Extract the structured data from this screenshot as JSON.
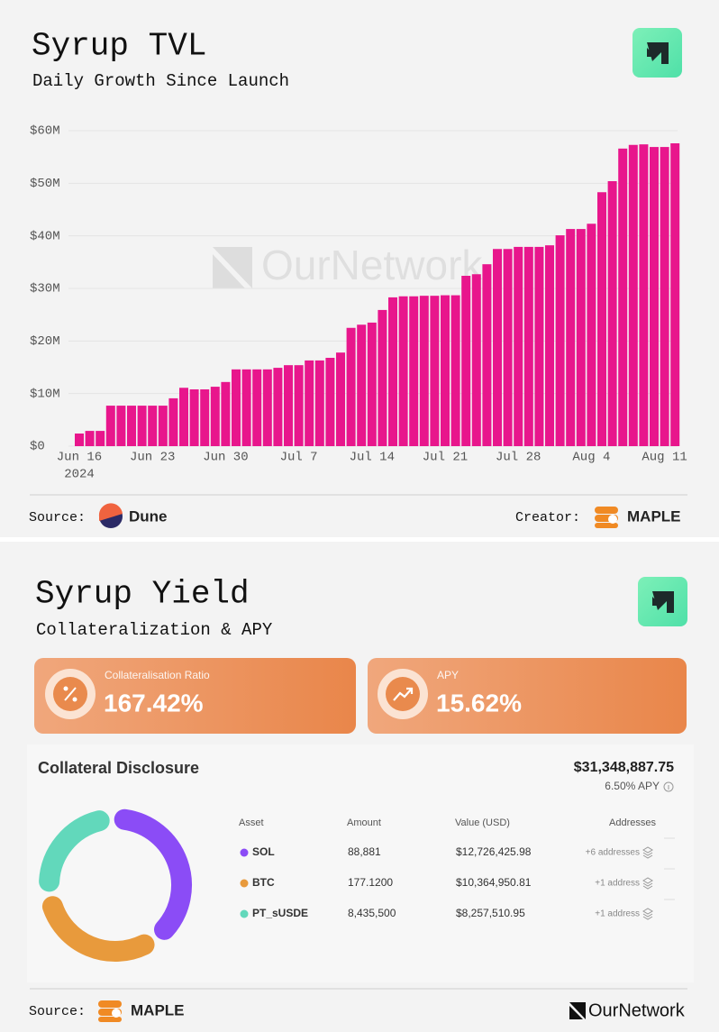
{
  "tvl_panel": {
    "title": "Syrup TVL",
    "subtitle": "Daily Growth Since Launch",
    "watermark": "OurNetwork",
    "footer": {
      "source_label": "Source:",
      "source_name": "Dune",
      "creator_label": "Creator:",
      "creator_name": "MAPLE"
    }
  },
  "chart_data": [
    {
      "type": "bar",
      "color": "#e8168c",
      "grid": true,
      "x_year": "2024",
      "categories": [
        "Jun 16",
        null,
        null,
        null,
        null,
        null,
        null,
        "Jun 23",
        null,
        null,
        null,
        null,
        null,
        null,
        "Jun 30",
        null,
        null,
        null,
        null,
        null,
        null,
        "Jul 7",
        null,
        null,
        null,
        null,
        null,
        null,
        "Jul 14",
        null,
        null,
        null,
        null,
        null,
        null,
        "Jul 21",
        null,
        null,
        null,
        null,
        null,
        null,
        "Jul 28",
        null,
        null,
        null,
        null,
        null,
        null,
        "Aug 4",
        null,
        null,
        null,
        null,
        null,
        null,
        "Aug 11",
        null
      ],
      "values": [
        2.4,
        2.9,
        2.9,
        7.7,
        7.7,
        7.7,
        7.7,
        7.7,
        7.7,
        9.1,
        11.1,
        10.8,
        10.8,
        11.3,
        12.2,
        14.6,
        14.6,
        14.6,
        14.6,
        14.9,
        15.4,
        15.4,
        16.3,
        16.3,
        16.8,
        17.8,
        22.5,
        23.1,
        23.5,
        25.9,
        28.3,
        28.5,
        28.5,
        28.6,
        28.6,
        28.7,
        28.7,
        32.4,
        32.7,
        34.6,
        37.5,
        37.5,
        37.9,
        37.9,
        37.9,
        38.2,
        40.1,
        41.3,
        41.3,
        42.3,
        48.3,
        50.4,
        56.6,
        57.3,
        57.4,
        56.9,
        56.9,
        57.6
      ],
      "ylim": [
        0,
        60
      ],
      "yticks": [
        {
          "value": 0,
          "label": "$0"
        },
        {
          "value": 10,
          "label": "$10M"
        },
        {
          "value": 20,
          "label": "$20M"
        },
        {
          "value": 30,
          "label": "$30M"
        },
        {
          "value": 40,
          "label": "$40M"
        },
        {
          "value": 50,
          "label": "$50M"
        },
        {
          "value": 60,
          "label": "$60M"
        }
      ]
    },
    {
      "type": "donut",
      "categories": [
        "SOL",
        "BTC",
        "PT_sUSDE"
      ],
      "colors": [
        "#8b4cf6",
        "#e89a3c",
        "#62d8bb"
      ],
      "values": [
        12726425.98,
        10364950.81,
        8257510.95
      ],
      "value_labels": [
        "$12,726,425.98",
        "$10,364,950.81",
        "$8,257,510.95"
      ],
      "amounts": [
        "88,881",
        "177.1200",
        "8,435,500"
      ],
      "addresses": [
        "+6 addresses",
        "+1 address",
        "+1 address"
      ]
    }
  ],
  "yield_panel": {
    "title": "Syrup Yield",
    "subtitle": "Collateralization & APY",
    "cards": [
      {
        "label": "Collateralisation Ratio",
        "value": "167.42%"
      },
      {
        "label": "APY",
        "value": "15.62%"
      }
    ],
    "disclosure": {
      "title": "Collateral Disclosure",
      "total": "$31,348,887.75",
      "apy": "6.50% APY",
      "columns": [
        "Asset",
        "Amount",
        "Value (USD)",
        "Addresses"
      ]
    },
    "footer": {
      "source_label": "Source:",
      "source_name": "MAPLE",
      "brand": "OurNetwork"
    }
  }
}
